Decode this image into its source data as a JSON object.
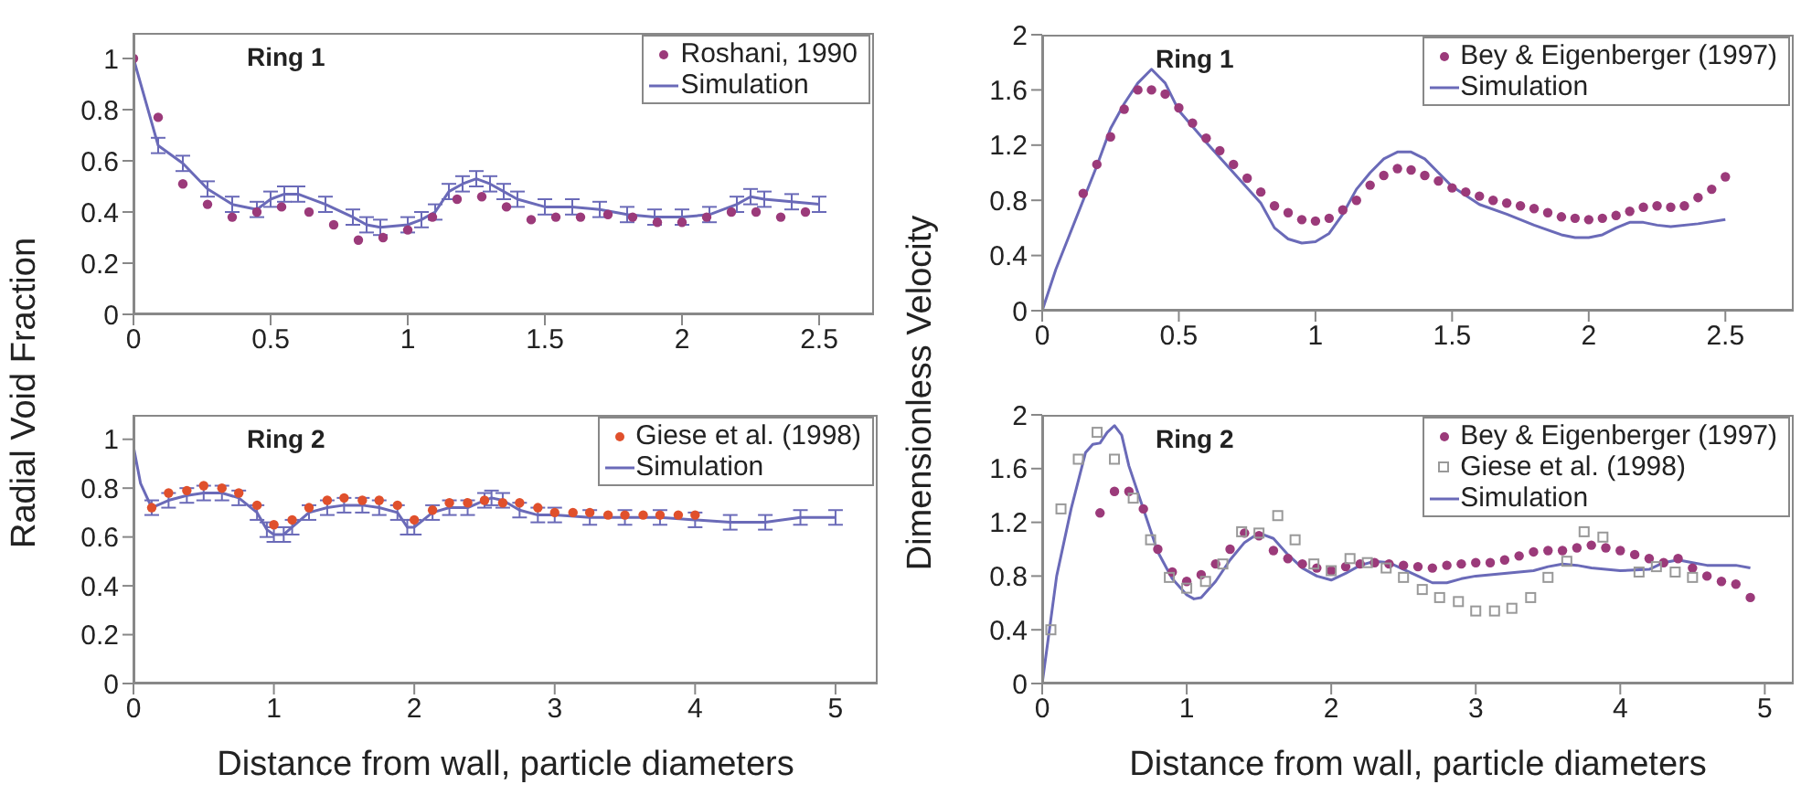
{
  "chart_data": [
    {
      "type": "scatter",
      "title": null,
      "ylabel": "Radial Void Fraction",
      "annotations": [
        "Ring 1"
      ],
      "xlim": [
        0,
        2.7
      ],
      "xticks": [
        0,
        0.5,
        1,
        1.5,
        2,
        2.5
      ],
      "ylim": [
        0,
        1.1
      ],
      "yticks": [
        0,
        0.2,
        0.4,
        0.6,
        0.8,
        1
      ],
      "legend": "top right",
      "series": [
        {
          "name": "Roshani, 1990",
          "type": "scatter",
          "marker": "circle",
          "color": "#9b3a7a",
          "x": [
            0,
            0.09,
            0.18,
            0.27,
            0.36,
            0.45,
            0.54,
            0.64,
            0.73,
            0.82,
            0.91,
            1.0,
            1.09,
            1.18,
            1.27,
            1.36,
            1.45,
            1.54,
            1.63,
            1.73,
            1.82,
            1.91,
            2.0,
            2.09,
            2.18,
            2.27,
            2.36,
            2.45
          ],
          "values": [
            1.0,
            0.77,
            0.51,
            0.43,
            0.38,
            0.4,
            0.42,
            0.4,
            0.35,
            0.29,
            0.3,
            0.33,
            0.38,
            0.45,
            0.46,
            0.42,
            0.37,
            0.38,
            0.38,
            0.39,
            0.38,
            0.36,
            0.36,
            0.38,
            0.4,
            0.4,
            0.38,
            0.4
          ]
        },
        {
          "name": "Simulation",
          "type": "line",
          "marker": "none",
          "color": "#6a6ab8",
          "x": [
            0,
            0.09,
            0.18,
            0.27,
            0.36,
            0.45,
            0.5,
            0.55,
            0.6,
            0.7,
            0.8,
            0.85,
            0.9,
            1.0,
            1.05,
            1.1,
            1.15,
            1.2,
            1.25,
            1.3,
            1.35,
            1.4,
            1.5,
            1.6,
            1.7,
            1.8,
            1.9,
            2.0,
            2.1,
            2.2,
            2.25,
            2.3,
            2.4,
            2.5
          ],
          "values": [
            1.0,
            0.66,
            0.59,
            0.49,
            0.43,
            0.41,
            0.45,
            0.47,
            0.47,
            0.43,
            0.38,
            0.35,
            0.34,
            0.35,
            0.37,
            0.4,
            0.48,
            0.51,
            0.53,
            0.51,
            0.48,
            0.45,
            0.42,
            0.42,
            0.41,
            0.39,
            0.38,
            0.38,
            0.39,
            0.43,
            0.46,
            0.45,
            0.44,
            0.43
          ],
          "errors": [
            null,
            0.03,
            0.03,
            0.03,
            0.03,
            0.03,
            0.03,
            0.03,
            0.03,
            0.03,
            0.03,
            0.03,
            0.03,
            0.03,
            0.03,
            0.03,
            0.03,
            0.03,
            0.03,
            0.03,
            0.03,
            0.03,
            0.03,
            0.03,
            0.03,
            0.03,
            0.03,
            0.03,
            0.03,
            0.03,
            0.03,
            0.03,
            0.03,
            0.03
          ]
        }
      ]
    },
    {
      "type": "scatter",
      "xlabel": "Distance from wall, particle diameters",
      "annotations": [
        "Ring 2"
      ],
      "xlim": [
        0,
        5.3
      ],
      "xticks": [
        0,
        1,
        2,
        3,
        4,
        5
      ],
      "ylim": [
        0,
        1.1
      ],
      "yticks": [
        0,
        0.2,
        0.4,
        0.6,
        0.8,
        1
      ],
      "legend": "top right",
      "series": [
        {
          "name": "Giese et al. (1998)",
          "type": "scatter",
          "marker": "circle",
          "color": "#e0502c",
          "x": [
            0.13,
            0.25,
            0.38,
            0.5,
            0.63,
            0.75,
            0.88,
            1.0,
            1.13,
            1.25,
            1.38,
            1.5,
            1.63,
            1.75,
            1.88,
            2.0,
            2.13,
            2.25,
            2.38,
            2.5,
            2.63,
            2.75,
            2.88,
            3.0,
            3.13,
            3.25,
            3.38,
            3.5,
            3.63,
            3.75,
            3.88,
            4.0
          ],
          "values": [
            0.72,
            0.78,
            0.79,
            0.81,
            0.8,
            0.78,
            0.73,
            0.65,
            0.67,
            0.72,
            0.75,
            0.76,
            0.75,
            0.75,
            0.73,
            0.67,
            0.71,
            0.74,
            0.74,
            0.75,
            0.74,
            0.74,
            0.72,
            0.7,
            0.7,
            0.7,
            0.69,
            0.69,
            0.69,
            0.69,
            0.69,
            0.69
          ]
        },
        {
          "name": "Simulation",
          "type": "line",
          "marker": "none",
          "color": "#6a6ab8",
          "x": [
            0,
            0.05,
            0.13,
            0.25,
            0.38,
            0.5,
            0.63,
            0.75,
            0.88,
            0.95,
            1.0,
            1.07,
            1.13,
            1.25,
            1.38,
            1.5,
            1.63,
            1.75,
            1.88,
            1.95,
            2.0,
            2.13,
            2.25,
            2.38,
            2.5,
            2.55,
            2.63,
            2.75,
            2.88,
            3.0,
            3.25,
            3.5,
            3.75,
            4.0,
            4.25,
            4.5,
            4.75,
            5.0
          ],
          "values": [
            0.97,
            0.82,
            0.72,
            0.75,
            0.77,
            0.78,
            0.78,
            0.76,
            0.7,
            0.63,
            0.61,
            0.61,
            0.64,
            0.7,
            0.72,
            0.73,
            0.73,
            0.72,
            0.7,
            0.64,
            0.64,
            0.7,
            0.72,
            0.72,
            0.75,
            0.76,
            0.75,
            0.71,
            0.69,
            0.69,
            0.68,
            0.68,
            0.68,
            0.67,
            0.66,
            0.66,
            0.68,
            0.68
          ],
          "errors": [
            null,
            null,
            0.03,
            0.03,
            0.03,
            0.03,
            0.03,
            0.03,
            0.03,
            0.03,
            0.03,
            0.03,
            0.03,
            0.03,
            0.03,
            0.03,
            0.03,
            0.03,
            0.03,
            0.03,
            0.03,
            0.03,
            0.03,
            0.03,
            0.03,
            0.03,
            0.03,
            0.03,
            0.03,
            0.03,
            0.03,
            0.03,
            0.03,
            0.03,
            0.03,
            0.03,
            0.03,
            0.03
          ]
        }
      ]
    },
    {
      "type": "scatter",
      "ylabel": "Dimensionless Velocity",
      "annotations": [
        "Ring 1"
      ],
      "xlim": [
        0,
        2.75
      ],
      "xticks": [
        0,
        0.5,
        1,
        1.5,
        2,
        2.5
      ],
      "ylim": [
        0,
        2
      ],
      "yticks": [
        0,
        0.4,
        0.8,
        1.2,
        1.6,
        2
      ],
      "legend": "top right",
      "series": [
        {
          "name": "Bey & Eigenberger (1997)",
          "type": "scatter",
          "marker": "circle",
          "color": "#9b3a7a",
          "x": [
            0.15,
            0.2,
            0.25,
            0.3,
            0.35,
            0.4,
            0.45,
            0.5,
            0.55,
            0.6,
            0.65,
            0.7,
            0.75,
            0.8,
            0.85,
            0.9,
            0.95,
            1.0,
            1.05,
            1.1,
            1.15,
            1.2,
            1.25,
            1.3,
            1.35,
            1.4,
            1.45,
            1.5,
            1.55,
            1.6,
            1.65,
            1.7,
            1.75,
            1.8,
            1.85,
            1.9,
            1.95,
            2.0,
            2.05,
            2.1,
            2.15,
            2.2,
            2.25,
            2.3,
            2.35,
            2.4,
            2.45,
            2.5
          ],
          "values": [
            0.85,
            1.06,
            1.26,
            1.46,
            1.6,
            1.6,
            1.57,
            1.47,
            1.36,
            1.25,
            1.16,
            1.06,
            0.96,
            0.86,
            0.76,
            0.71,
            0.66,
            0.65,
            0.67,
            0.73,
            0.8,
            0.91,
            0.98,
            1.03,
            1.02,
            0.98,
            0.94,
            0.89,
            0.86,
            0.83,
            0.8,
            0.78,
            0.76,
            0.74,
            0.71,
            0.68,
            0.67,
            0.66,
            0.67,
            0.69,
            0.72,
            0.75,
            0.76,
            0.75,
            0.76,
            0.82,
            0.88,
            0.97
          ]
        },
        {
          "name": "Simulation",
          "type": "line",
          "marker": "none",
          "color": "#6a6ab8",
          "x": [
            0,
            0.05,
            0.1,
            0.2,
            0.25,
            0.3,
            0.35,
            0.4,
            0.45,
            0.5,
            0.6,
            0.7,
            0.8,
            0.85,
            0.9,
            0.95,
            1.0,
            1.05,
            1.1,
            1.15,
            1.2,
            1.25,
            1.3,
            1.35,
            1.4,
            1.45,
            1.5,
            1.6,
            1.7,
            1.8,
            1.9,
            1.95,
            2.0,
            2.05,
            2.1,
            2.15,
            2.2,
            2.25,
            2.3,
            2.4,
            2.5
          ],
          "values": [
            0,
            0.3,
            0.55,
            1.05,
            1.32,
            1.5,
            1.65,
            1.75,
            1.65,
            1.45,
            1.22,
            1.0,
            0.78,
            0.6,
            0.52,
            0.49,
            0.5,
            0.56,
            0.7,
            0.88,
            1.0,
            1.1,
            1.15,
            1.15,
            1.1,
            1.0,
            0.9,
            0.77,
            0.7,
            0.62,
            0.55,
            0.53,
            0.53,
            0.55,
            0.6,
            0.64,
            0.64,
            0.62,
            0.61,
            0.63,
            0.66
          ]
        }
      ]
    },
    {
      "type": "scatter",
      "xlabel": "Distance from wall, particle diameters",
      "annotations": [
        "Ring 2"
      ],
      "xlim": [
        0,
        5.2
      ],
      "xticks": [
        0,
        1,
        2,
        3,
        4,
        5
      ],
      "ylim": [
        0,
        2
      ],
      "yticks": [
        0,
        0.4,
        0.8,
        1.2,
        1.6,
        2
      ],
      "legend": "top right",
      "series": [
        {
          "name": "Bey & Eigenberger (1997)",
          "type": "scatter",
          "marker": "circle",
          "color": "#9b3a7a",
          "x": [
            0.4,
            0.5,
            0.6,
            0.7,
            0.8,
            0.9,
            1.0,
            1.1,
            1.2,
            1.3,
            1.4,
            1.5,
            1.6,
            1.7,
            1.8,
            1.9,
            2.0,
            2.1,
            2.2,
            2.3,
            2.4,
            2.5,
            2.6,
            2.7,
            2.8,
            2.9,
            3.0,
            3.1,
            3.2,
            3.3,
            3.4,
            3.5,
            3.6,
            3.7,
            3.8,
            3.9,
            4.0,
            4.1,
            4.2,
            4.3,
            4.4,
            4.5,
            4.6,
            4.7,
            4.8,
            4.9
          ],
          "values": [
            1.27,
            1.43,
            1.43,
            1.3,
            1.0,
            0.83,
            0.76,
            0.81,
            0.89,
            1.0,
            1.12,
            1.1,
            0.99,
            0.93,
            0.89,
            0.86,
            0.84,
            0.87,
            0.89,
            0.9,
            0.89,
            0.88,
            0.87,
            0.86,
            0.88,
            0.89,
            0.9,
            0.9,
            0.92,
            0.95,
            0.98,
            0.99,
            0.99,
            1.01,
            1.03,
            1.01,
            0.99,
            0.96,
            0.93,
            0.9,
            0.93,
            0.86,
            0.8,
            0.76,
            0.74,
            0.64
          ]
        },
        {
          "name": "Giese et al. (1998)",
          "type": "scatter",
          "marker": "square",
          "color": "#999999",
          "x": [
            0.06,
            0.13,
            0.25,
            0.38,
            0.5,
            0.63,
            0.75,
            0.88,
            1.0,
            1.13,
            1.25,
            1.38,
            1.5,
            1.63,
            1.75,
            1.88,
            2.0,
            2.13,
            2.25,
            2.38,
            2.5,
            2.63,
            2.75,
            2.88,
            3.0,
            3.13,
            3.25,
            3.38,
            3.5,
            3.63,
            3.75,
            3.88,
            4.13,
            4.25,
            4.38,
            4.5
          ],
          "values": [
            0.4,
            1.3,
            1.67,
            1.87,
            1.67,
            1.38,
            1.07,
            0.79,
            0.71,
            0.76,
            0.89,
            1.13,
            1.12,
            1.25,
            1.07,
            0.89,
            0.84,
            0.93,
            0.9,
            0.86,
            0.79,
            0.7,
            0.64,
            0.61,
            0.54,
            0.54,
            0.56,
            0.64,
            0.79,
            0.91,
            1.13,
            1.09,
            0.83,
            0.87,
            0.83,
            0.79
          ]
        },
        {
          "name": "Simulation",
          "type": "line",
          "marker": "none",
          "color": "#6a6ab8",
          "x": [
            0,
            0.05,
            0.1,
            0.2,
            0.3,
            0.35,
            0.4,
            0.45,
            0.5,
            0.55,
            0.6,
            0.7,
            0.8,
            0.9,
            1.0,
            1.05,
            1.1,
            1.2,
            1.3,
            1.4,
            1.5,
            1.6,
            1.7,
            1.8,
            1.9,
            2.0,
            2.1,
            2.2,
            2.3,
            2.4,
            2.5,
            2.6,
            2.7,
            2.8,
            2.9,
            3.0,
            3.2,
            3.4,
            3.5,
            3.6,
            3.7,
            3.8,
            4.0,
            4.2,
            4.3,
            4.4,
            4.5,
            4.6,
            4.8,
            4.9
          ],
          "values": [
            0,
            0.4,
            0.8,
            1.3,
            1.72,
            1.78,
            1.79,
            1.87,
            1.92,
            1.85,
            1.62,
            1.3,
            0.98,
            0.78,
            0.66,
            0.63,
            0.64,
            0.76,
            0.92,
            1.05,
            1.12,
            1.08,
            0.96,
            0.86,
            0.8,
            0.77,
            0.82,
            0.88,
            0.91,
            0.9,
            0.85,
            0.8,
            0.75,
            0.75,
            0.78,
            0.8,
            0.82,
            0.84,
            0.87,
            0.89,
            0.88,
            0.86,
            0.84,
            0.85,
            0.9,
            0.92,
            0.9,
            0.88,
            0.88,
            0.86
          ]
        }
      ]
    }
  ]
}
